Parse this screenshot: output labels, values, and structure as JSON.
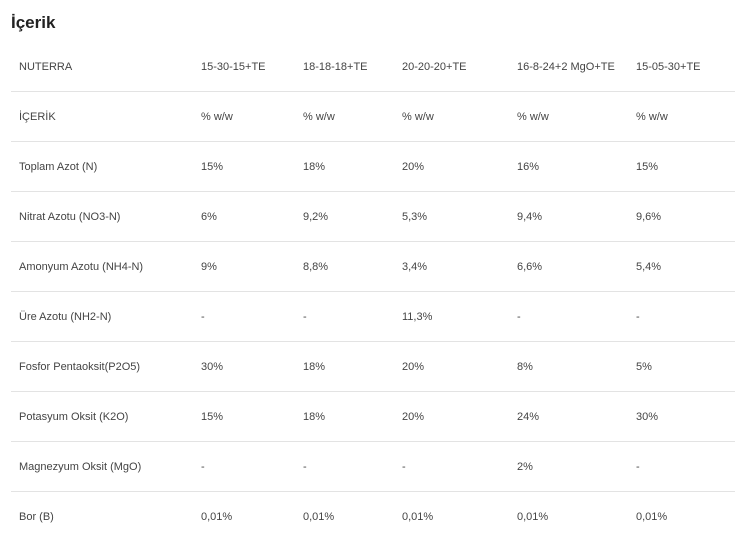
{
  "title": "İçerik",
  "table": {
    "header": [
      "NUTERRA",
      "15-30-15+TE",
      "18-18-18+TE",
      "20-20-20+TE",
      "16-8-24+2 MgO+TE",
      "15-05-30+TE"
    ],
    "rows": [
      [
        "İÇERİK",
        "% w/w",
        "% w/w",
        "% w/w",
        "% w/w",
        "% w/w"
      ],
      [
        "Toplam Azot (N)",
        "15%",
        "18%",
        "20%",
        "16%",
        "15%"
      ],
      [
        "Nitrat Azotu (NO3-N)",
        "6%",
        "9,2%",
        "5,3%",
        "9,4%",
        "9,6%"
      ],
      [
        "Amonyum Azotu (NH4-N)",
        "9%",
        "8,8%",
        "3,4%",
        "6,6%",
        "5,4%"
      ],
      [
        "Üre Azotu (NH2-N)",
        "-",
        "-",
        "11,3%",
        "-",
        "-"
      ],
      [
        "Fosfor Pentaoksit(P2O5)",
        "30%",
        "18%",
        "20%",
        "8%",
        "5%"
      ],
      [
        "Potasyum Oksit (K2O)",
        "15%",
        "18%",
        "20%",
        "24%",
        "30%"
      ],
      [
        "Magnezyum Oksit (MgO)",
        "-",
        "-",
        "-",
        "2%",
        "-"
      ],
      [
        "Bor (B)",
        "0,01%",
        "0,01%",
        "0,01%",
        "0,01%",
        "0,01%"
      ]
    ]
  }
}
